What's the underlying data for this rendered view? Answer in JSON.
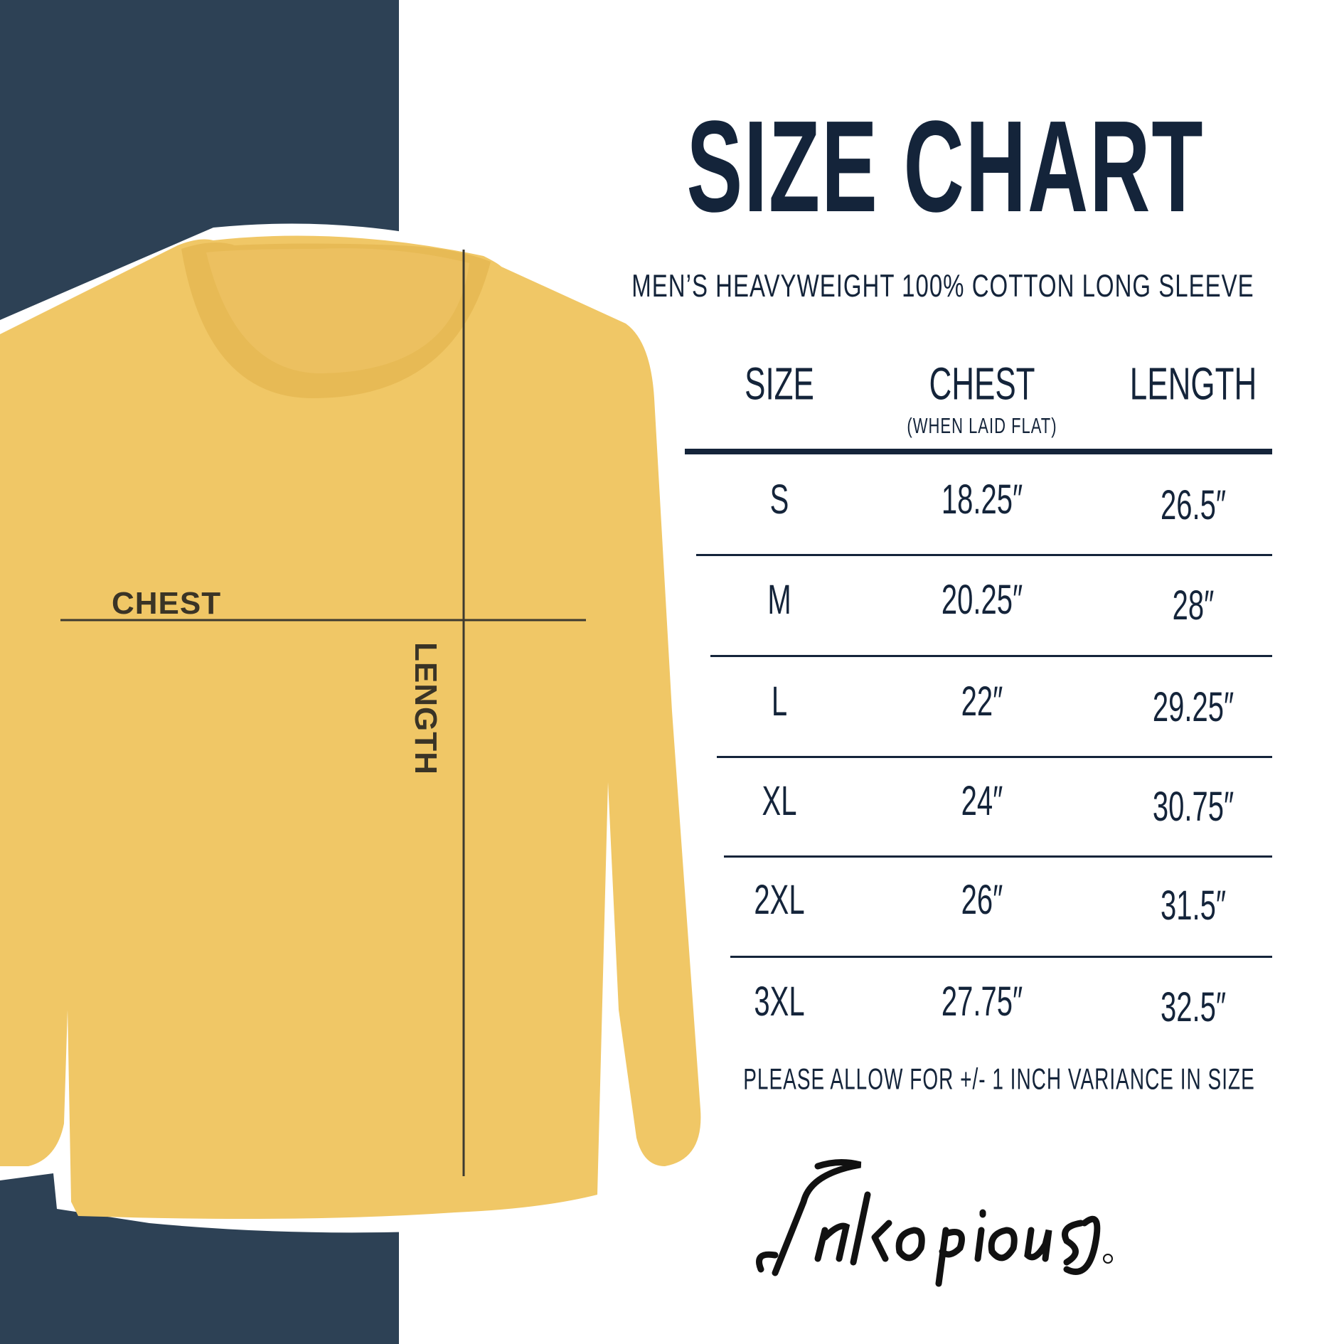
{
  "colors": {
    "panel": "#2d4155",
    "text": "#14243a",
    "shirt": "#f0c766"
  },
  "title": "SIZE CHART",
  "subtitle": "MEN’S HEAVYWEIGHT 100% COTTON LONG SLEEVE",
  "shirt_labels": {
    "chest": "CHEST",
    "length": "LENGTH"
  },
  "chart_data": {
    "type": "table",
    "columns": [
      {
        "label": "SIZE",
        "sublabel": ""
      },
      {
        "label": "CHEST",
        "sublabel": "(WHEN LAID FLAT)"
      },
      {
        "label": "LENGTH",
        "sublabel": ""
      }
    ],
    "rows": [
      [
        "S",
        "18.25″",
        "26.5″"
      ],
      [
        "M",
        "20.25″",
        "28″"
      ],
      [
        "L",
        "22″",
        "29.25″"
      ],
      [
        "XL",
        "24″",
        "30.75″"
      ],
      [
        "2XL",
        "26″",
        "31.5″"
      ],
      [
        "3XL",
        "27.75″",
        "32.5″"
      ]
    ]
  },
  "note": "PLEASE ALLOW FOR +/- 1 INCH VARIANCE IN SIZE",
  "logo": "Inkopious®"
}
